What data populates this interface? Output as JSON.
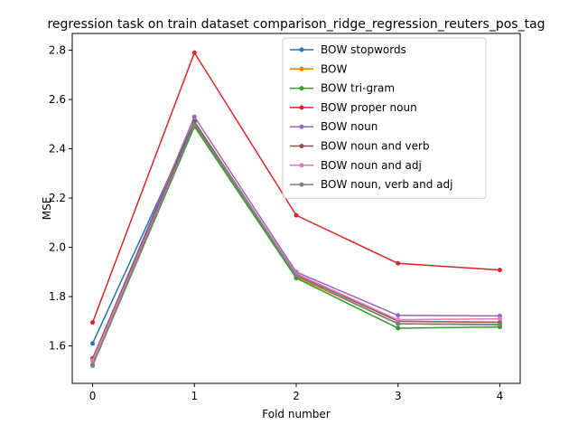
{
  "chart_data": {
    "type": "line",
    "title": "regression task on train dataset comparison_ridge_regression_reuters_pos_tag",
    "xlabel": "Fold number",
    "ylabel": "MSE",
    "x": [
      0,
      1,
      2,
      3,
      4
    ],
    "xticks": [
      "0",
      "1",
      "2",
      "3",
      "4"
    ],
    "xlim": [
      -0.2,
      4.2
    ],
    "yticks": [
      "1.6",
      "1.8",
      "2.0",
      "2.2",
      "2.4",
      "2.6",
      "2.8"
    ],
    "ylim": [
      1.448,
      2.868
    ],
    "grid": false,
    "legend_position": "top-right",
    "series": [
      {
        "name": "BOW stopwords",
        "color": "#1f77b4",
        "values": [
          1.61,
          2.51,
          1.88,
          1.69,
          1.685
        ]
      },
      {
        "name": "BOW",
        "color": "#ff7f0e",
        "values": [
          1.525,
          2.495,
          1.88,
          1.69,
          1.685
        ]
      },
      {
        "name": "BOW tri-gram",
        "color": "#2ca02c",
        "values": [
          1.52,
          2.49,
          1.875,
          1.672,
          1.677
        ]
      },
      {
        "name": "BOW proper noun",
        "color": "#d62728",
        "values": [
          1.695,
          2.79,
          2.13,
          1.935,
          1.908
        ]
      },
      {
        "name": "BOW noun",
        "color": "#9467bd",
        "values": [
          1.545,
          2.53,
          1.9,
          1.724,
          1.722
        ]
      },
      {
        "name": "BOW noun and verb",
        "color": "#8c564b",
        "values": [
          1.55,
          2.51,
          1.89,
          1.7,
          1.696
        ]
      },
      {
        "name": "BOW noun and adj",
        "color": "#e377c2",
        "values": [
          1.54,
          2.5,
          1.893,
          1.706,
          1.71
        ]
      },
      {
        "name": "BOW noun, verb and adj",
        "color": "#7f7f7f",
        "values": [
          1.522,
          2.5,
          1.885,
          1.69,
          1.688
        ]
      }
    ]
  }
}
